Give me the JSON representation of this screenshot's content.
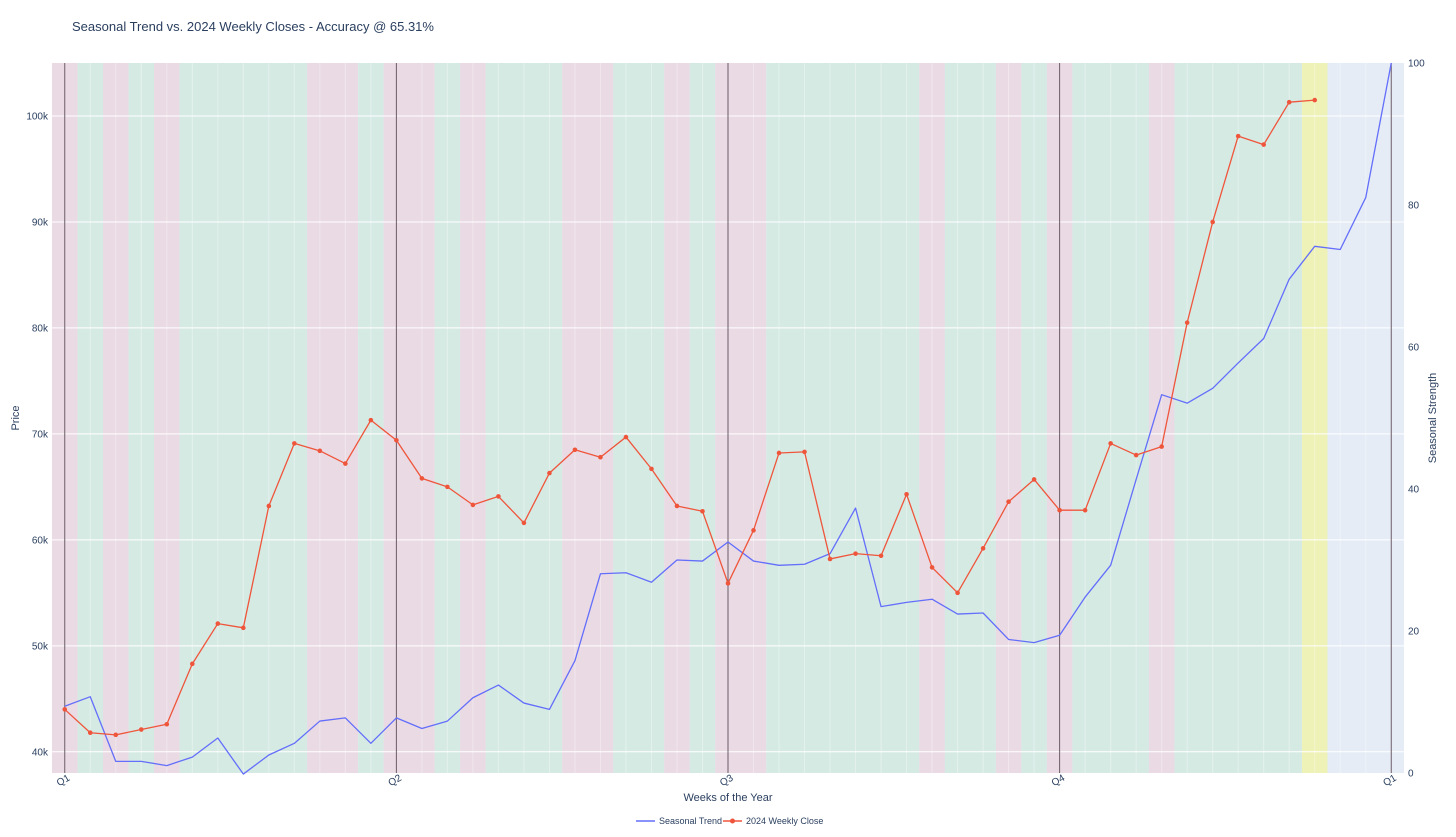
{
  "chart_data": {
    "type": "line",
    "title": "Seasonal Trend vs. 2024 Weekly Closes - Accuracy @ 65.31%",
    "xlabel": "Weeks of the Year",
    "ylabel": "Price",
    "y2label": "Seasonal Strength",
    "ylim": [
      38000,
      105000
    ],
    "y2lim": [
      0,
      100
    ],
    "xlim": [
      0.5,
      53.5
    ],
    "grid": true,
    "legend_position": "bottom-center",
    "x_ticks": [
      {
        "x": 1,
        "label": "Q1"
      },
      {
        "x": 14,
        "label": "Q2"
      },
      {
        "x": 27,
        "label": "Q3"
      },
      {
        "x": 40,
        "label": "Q4"
      },
      {
        "x": 53,
        "label": "Q1"
      }
    ],
    "y_ticks": [
      {
        "value": 40000,
        "label": "40k"
      },
      {
        "value": 50000,
        "label": "50k"
      },
      {
        "value": 60000,
        "label": "60k"
      },
      {
        "value": 70000,
        "label": "70k"
      },
      {
        "value": 80000,
        "label": "80k"
      },
      {
        "value": 90000,
        "label": "90k"
      },
      {
        "value": 100000,
        "label": "100k"
      }
    ],
    "y2_ticks": [
      {
        "value": 0,
        "label": "0"
      },
      {
        "value": 20,
        "label": "20"
      },
      {
        "value": 40,
        "label": "40"
      },
      {
        "value": 60,
        "label": "60"
      },
      {
        "value": 80,
        "label": "80"
      },
      {
        "value": 100,
        "label": "100"
      }
    ],
    "x": [
      1,
      2,
      3,
      4,
      5,
      6,
      7,
      8,
      9,
      10,
      11,
      12,
      13,
      14,
      15,
      16,
      17,
      18,
      19,
      20,
      21,
      22,
      23,
      24,
      25,
      26,
      27,
      28,
      29,
      30,
      31,
      32,
      33,
      34,
      35,
      36,
      37,
      38,
      39,
      40,
      41,
      42,
      43,
      44,
      45,
      46,
      47,
      48,
      49,
      50,
      51,
      52,
      53
    ],
    "series": [
      {
        "name": "Seasonal Trend",
        "color": "#636efa",
        "marker": false,
        "values": [
          44300,
          45200,
          39100,
          39100,
          38700,
          39500,
          41300,
          37900,
          39700,
          40800,
          42900,
          43200,
          40800,
          43200,
          42200,
          42900,
          45100,
          46300,
          44600,
          44000,
          48600,
          56800,
          56900,
          56000,
          58100,
          58000,
          59800,
          58000,
          57600,
          57700,
          58700,
          63000,
          53700,
          54100,
          54400,
          53000,
          53100,
          50600,
          50300,
          51000,
          54600,
          57600,
          65700,
          73700,
          72900,
          74300,
          76700,
          79000,
          84600,
          87700,
          87400,
          92300,
          105000
        ]
      },
      {
        "name": "2024 Weekly Close",
        "color": "#ef553b",
        "marker": true,
        "values": [
          44000,
          41800,
          41600,
          42100,
          42600,
          48300,
          52100,
          51700,
          63200,
          69100,
          68400,
          67200,
          71300,
          69400,
          65800,
          65000,
          63300,
          64100,
          61600,
          66300,
          68500,
          67800,
          69700,
          66700,
          63200,
          62700,
          55900,
          60900,
          68200,
          68300,
          58200,
          58700,
          58500,
          64300,
          57400,
          55000,
          59200,
          63600,
          65700,
          62800,
          62800,
          69100,
          68000,
          68800,
          80500,
          90000,
          98100,
          97300,
          101300,
          101500,
          null,
          null,
          null
        ]
      }
    ],
    "bands": [
      {
        "from": 0.5,
        "to": 1.5,
        "state": "negative"
      },
      {
        "from": 1.5,
        "to": 2.5,
        "state": "positive"
      },
      {
        "from": 2.5,
        "to": 3.5,
        "state": "negative"
      },
      {
        "from": 3.5,
        "to": 4.5,
        "state": "positive"
      },
      {
        "from": 4.5,
        "to": 5.5,
        "state": "negative"
      },
      {
        "from": 5.5,
        "to": 10.5,
        "state": "positive"
      },
      {
        "from": 10.5,
        "to": 12.5,
        "state": "negative"
      },
      {
        "from": 12.5,
        "to": 13.5,
        "state": "positive"
      },
      {
        "from": 13.5,
        "to": 15.5,
        "state": "negative"
      },
      {
        "from": 15.5,
        "to": 16.5,
        "state": "positive"
      },
      {
        "from": 16.5,
        "to": 17.5,
        "state": "negative"
      },
      {
        "from": 17.5,
        "to": 20.5,
        "state": "positive"
      },
      {
        "from": 20.5,
        "to": 22.5,
        "state": "negative"
      },
      {
        "from": 22.5,
        "to": 24.5,
        "state": "positive"
      },
      {
        "from": 24.5,
        "to": 25.5,
        "state": "negative"
      },
      {
        "from": 25.5,
        "to": 26.5,
        "state": "positive"
      },
      {
        "from": 26.5,
        "to": 28.5,
        "state": "negative"
      },
      {
        "from": 28.5,
        "to": 34.5,
        "state": "positive"
      },
      {
        "from": 34.5,
        "to": 35.5,
        "state": "negative"
      },
      {
        "from": 35.5,
        "to": 37.5,
        "state": "positive"
      },
      {
        "from": 37.5,
        "to": 38.5,
        "state": "negative"
      },
      {
        "from": 38.5,
        "to": 39.5,
        "state": "positive"
      },
      {
        "from": 39.5,
        "to": 40.5,
        "state": "negative"
      },
      {
        "from": 40.5,
        "to": 43.5,
        "state": "positive"
      },
      {
        "from": 43.5,
        "to": 44.5,
        "state": "negative"
      },
      {
        "from": 44.5,
        "to": 49.5,
        "state": "positive"
      },
      {
        "from": 49.5,
        "to": 50.5,
        "state": "current"
      },
      {
        "from": 50.5,
        "to": 53.5,
        "state": "none"
      }
    ],
    "band_colors": {
      "positive": "#d6eae4",
      "negative": "#eadae4",
      "current": "#eef2b6",
      "none": "#e5ecf6"
    },
    "quarter_lines": [
      1,
      14,
      27,
      40,
      53
    ]
  }
}
